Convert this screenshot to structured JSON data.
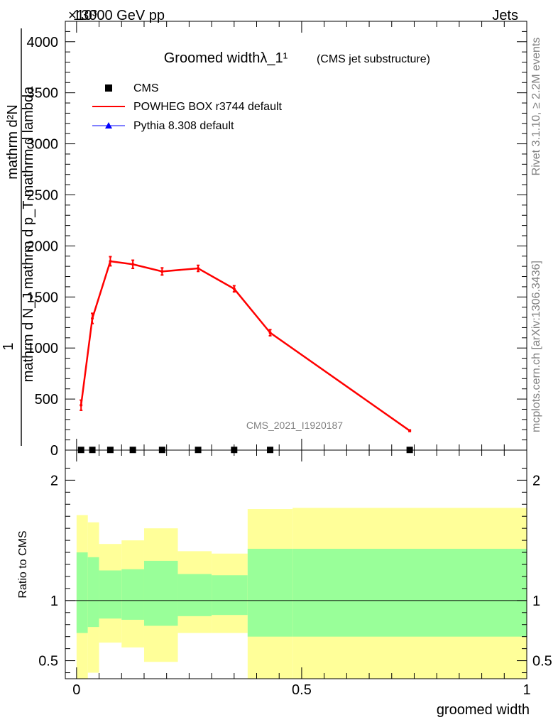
{
  "header": {
    "energy": "13000 GeV pp",
    "category": "Jets",
    "exponent_marker": "×10³"
  },
  "side_labels": {
    "rivet": "Rivet 3.1.10, ≥ 2.2M events",
    "mcplots": "mcplots.cern.ch [arXiv:1306.3436]"
  },
  "watermark": "CMS_2021_I1920187",
  "chart_data": [
    {
      "type": "line",
      "title": "Groomed widthλ_1¹",
      "subtitle": "(CMS jet substructure)",
      "ylabel_top": "1",
      "ylabel_num": "mathrm d²N",
      "ylabel_den": "mathrm d N_J mathrm d p_T mathrm d lambda",
      "ylabel_den_parts": [
        "mathrm d N",
        "mathrm d p",
        "mathrm d p",
        "mathrm d lambda"
      ],
      "ylim": [
        0,
        4200
      ],
      "yticks": [
        0,
        500,
        1000,
        1500,
        2000,
        2500,
        3000,
        3500,
        4000
      ],
      "ytick_labels": [
        "0",
        "500",
        "1000",
        "1500",
        "2000",
        "2500",
        "3000",
        "3500",
        "4000"
      ],
      "xlim": [
        -0.025,
        1.0
      ],
      "legend_position": "top-left",
      "legend": [
        {
          "name": "CMS",
          "color": "#000000",
          "marker": "square"
        },
        {
          "name": "POWHEG BOX r3744 default",
          "color": "#ff0000",
          "marker": "line"
        },
        {
          "name": "Pythia 8.308 default",
          "color": "#0000ff",
          "marker": "triangle"
        }
      ],
      "series": [
        {
          "name": "CMS",
          "color": "#000000",
          "x": [
            0.01,
            0.035,
            0.075,
            0.125,
            0.19,
            0.27,
            0.35,
            0.43,
            0.74
          ],
          "y": [
            2,
            2,
            2,
            2,
            2,
            2,
            2,
            2,
            2
          ]
        },
        {
          "name": "POWHEG BOX r3744 default",
          "color": "#ff0000",
          "x": [
            0.01,
            0.035,
            0.075,
            0.125,
            0.19,
            0.27,
            0.35,
            0.43,
            0.74
          ],
          "y": [
            440,
            1290,
            1850,
            1820,
            1750,
            1780,
            1580,
            1150,
            190
          ],
          "yerr": [
            50,
            50,
            45,
            40,
            35,
            30,
            30,
            30,
            8
          ]
        }
      ]
    },
    {
      "type": "area",
      "ylabel": "Ratio to CMS",
      "xlabel": "groomed width",
      "ylim": [
        0.35,
        2.25
      ],
      "yticks": [
        0.5,
        1,
        2
      ],
      "ytick_labels": [
        "0.5",
        "1",
        "2"
      ],
      "xlim": [
        -0.025,
        1.0
      ],
      "xticks": [
        0,
        0.5,
        1
      ],
      "xtick_labels": [
        "0",
        "0.5",
        "1"
      ],
      "reference_line": 1,
      "bands": {
        "edges": [
          0,
          0.025,
          0.05,
          0.1,
          0.15,
          0.225,
          0.3,
          0.38,
          0.48,
          1.0
        ],
        "inner_color": "#99ff99",
        "outer_color": "#ffff99",
        "inner_low": [
          0.73,
          0.78,
          0.85,
          0.84,
          0.79,
          0.87,
          0.88,
          0.7,
          0.7
        ],
        "inner_high": [
          1.4,
          1.36,
          1.25,
          1.26,
          1.33,
          1.22,
          1.21,
          1.43,
          1.43
        ],
        "outer_low": [
          0.35,
          0.4,
          0.65,
          0.61,
          0.49,
          0.73,
          0.73,
          0.35,
          0.35
        ],
        "outer_high": [
          1.71,
          1.65,
          1.47,
          1.5,
          1.6,
          1.41,
          1.39,
          1.76,
          1.77
        ]
      }
    }
  ]
}
